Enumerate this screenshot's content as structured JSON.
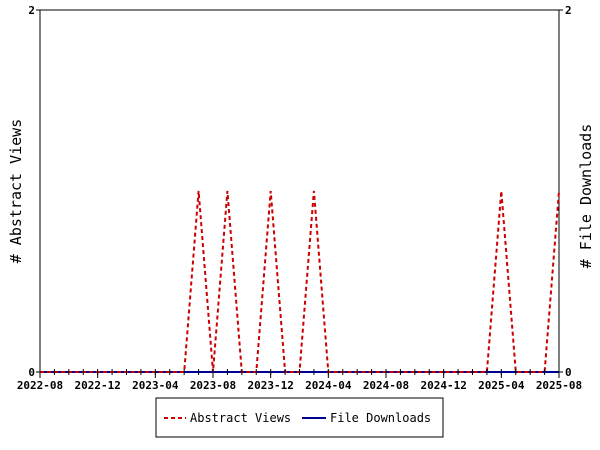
{
  "chart_data": {
    "type": "line",
    "xlabel": "",
    "ylabel_left": "# Abstract Views",
    "ylabel_right": "# File Downloads",
    "x_ticks": [
      "2022-08",
      "2022-12",
      "2023-04",
      "2023-08",
      "2023-12",
      "2024-04",
      "2024-08",
      "2024-12",
      "2025-04",
      "2025-08"
    ],
    "y_left_range": [
      0,
      2
    ],
    "y_left_ticks": [
      "0",
      "2"
    ],
    "y_right_range": [
      0,
      2
    ],
    "y_right_ticks": [
      "0",
      "2"
    ],
    "grid": false,
    "legend_position": "bottom",
    "x_start": "2022-08",
    "x_end": "2025-08",
    "series": [
      {
        "name": "Abstract Views",
        "axis": "left",
        "color": "#cc0000",
        "style": "dashed",
        "points": [
          [
            "2022-08",
            0
          ],
          [
            "2023-06",
            0
          ],
          [
            "2023-07",
            1
          ],
          [
            "2023-08",
            0
          ],
          [
            "2023-09",
            1
          ],
          [
            "2023-10",
            0
          ],
          [
            "2023-11",
            0
          ],
          [
            "2023-12",
            1
          ],
          [
            "2024-01",
            0
          ],
          [
            "2024-02",
            0
          ],
          [
            "2024-03",
            1
          ],
          [
            "2024-04",
            0
          ],
          [
            "2025-03",
            0
          ],
          [
            "2025-04",
            1
          ],
          [
            "2025-05",
            0
          ],
          [
            "2025-07",
            0
          ],
          [
            "2025-08",
            1
          ]
        ]
      },
      {
        "name": "File Downloads",
        "axis": "right",
        "color": "#000099",
        "style": "solid",
        "points": [
          [
            "2022-08",
            0
          ],
          [
            "2025-08",
            0
          ]
        ]
      }
    ]
  }
}
